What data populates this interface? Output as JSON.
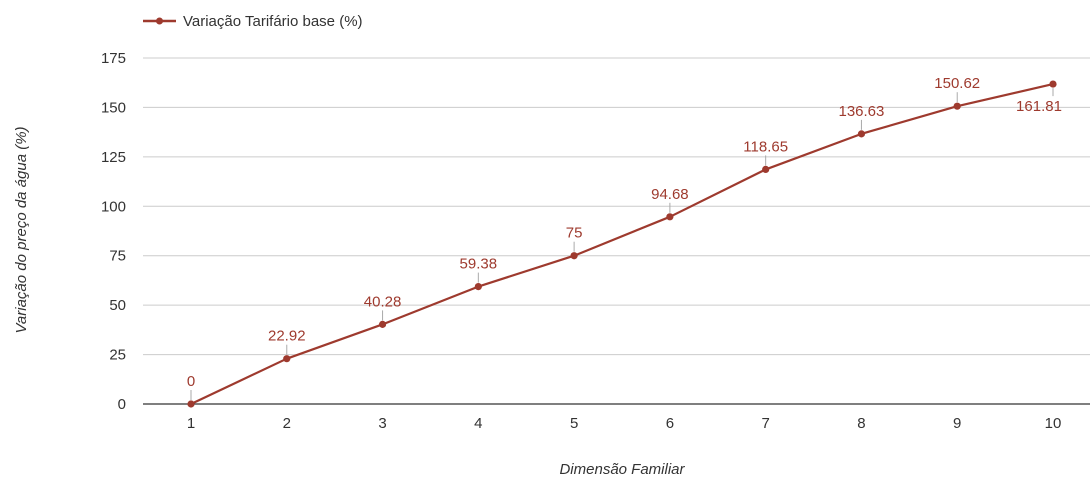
{
  "chart_data": {
    "type": "line",
    "title": "",
    "xlabel": "Dimensão Familiar",
    "ylabel": "Variação do preço da água (%)",
    "x": [
      1,
      2,
      3,
      4,
      5,
      6,
      7,
      8,
      9,
      10
    ],
    "x_tick_labels": [
      "1",
      "2",
      "3",
      "4",
      "5",
      "6",
      "7",
      "8",
      "9",
      "10"
    ],
    "y_tick_labels": [
      "0",
      "25",
      "50",
      "75",
      "100",
      "125",
      "150",
      "175"
    ],
    "ylim": [
      0,
      175
    ],
    "grid": true,
    "legend_position": "top-left",
    "series": [
      {
        "name": "Variação Tarifário base (%)",
        "color": "#9e3a2e",
        "values": [
          0,
          22.92,
          40.28,
          59.38,
          75,
          94.68,
          118.65,
          136.63,
          150.62,
          161.81
        ],
        "labels": [
          "0",
          "22.92",
          "40.28",
          "59.38",
          "75",
          "94.68",
          "118.65",
          "136.63",
          "150.62",
          "161.81"
        ]
      }
    ]
  }
}
